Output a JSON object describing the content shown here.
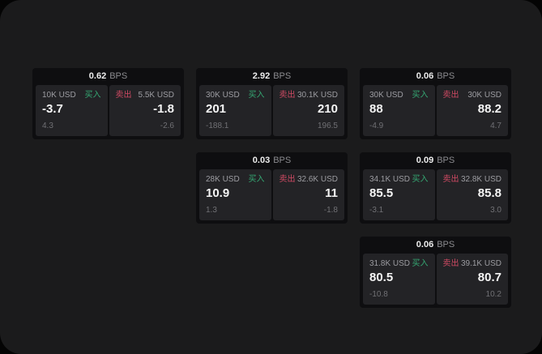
{
  "page": {
    "background": "#040404",
    "surface_color": "#1b1b1c",
    "card_color": "#0e0e10",
    "tile_color": "#232326"
  },
  "labels": {
    "bps": "BPS",
    "buy": "买入",
    "sell": "卖出"
  },
  "colors": {
    "buy": "#35a873",
    "sell": "#cf4a63"
  },
  "cards": [
    {
      "row": 1,
      "col": 1,
      "bps": "0.62",
      "buy": {
        "amount": "10K USD",
        "value": "-3.7",
        "sub": "4.3"
      },
      "sell": {
        "amount": "5.5K USD",
        "value": "-1.8",
        "sub": "-2.6"
      }
    },
    {
      "row": 1,
      "col": 2,
      "bps": "2.92",
      "buy": {
        "amount": "30K USD",
        "value": "201",
        "sub": "-188.1"
      },
      "sell": {
        "amount": "30.1K USD",
        "value": "210",
        "sub": "196.5"
      }
    },
    {
      "row": 1,
      "col": 3,
      "bps": "0.06",
      "buy": {
        "amount": "30K USD",
        "value": "88",
        "sub": "-4.9"
      },
      "sell": {
        "amount": "30K USD",
        "value": "88.2",
        "sub": "4.7"
      }
    },
    {
      "row": 2,
      "col": 2,
      "bps": "0.03",
      "buy": {
        "amount": "28K USD",
        "value": "10.9",
        "sub": "1.3"
      },
      "sell": {
        "amount": "32.6K USD",
        "value": "11",
        "sub": "-1.8"
      }
    },
    {
      "row": 2,
      "col": 3,
      "bps": "0.09",
      "buy": {
        "amount": "34.1K USD",
        "value": "85.5",
        "sub": "-3.1"
      },
      "sell": {
        "amount": "32.8K USD",
        "value": "85.8",
        "sub": "3.0"
      }
    },
    {
      "row": 3,
      "col": 3,
      "bps": "0.06",
      "buy": {
        "amount": "31.8K USD",
        "value": "80.5",
        "sub": "-10.8"
      },
      "sell": {
        "amount": "39.1K USD",
        "value": "80.7",
        "sub": "10.2"
      }
    }
  ]
}
